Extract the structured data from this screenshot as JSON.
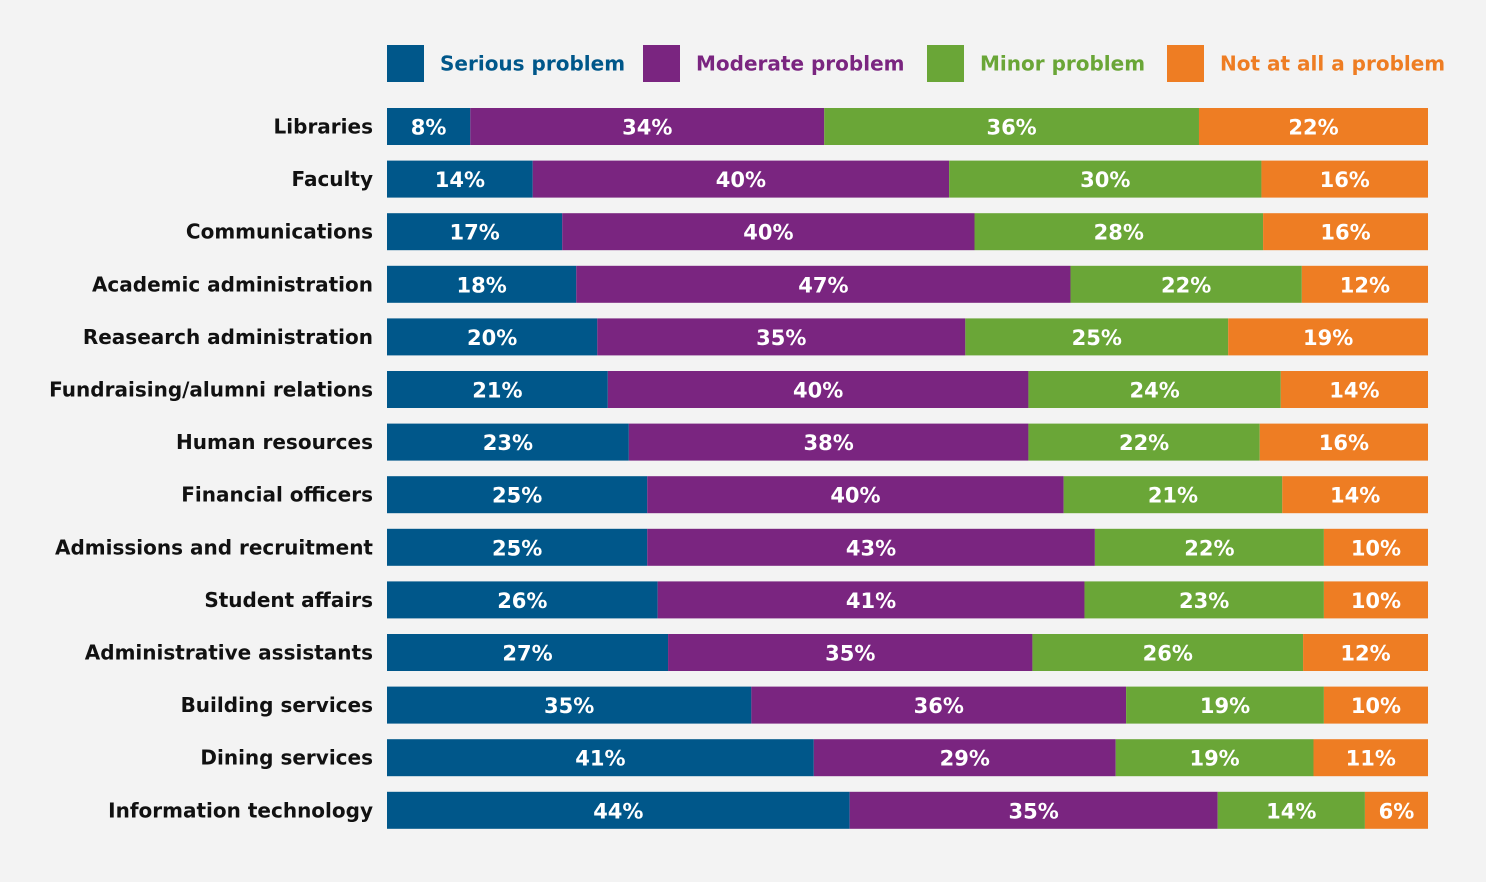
{
  "chart_data": {
    "type": "bar",
    "orientation": "horizontal",
    "stacked": true,
    "unit": "%",
    "categories": [
      "Libraries",
      "Faculty",
      "Communications",
      "Academic administration",
      "Reasearch administration",
      "Fundraising/alumni relations",
      "Human resources",
      "Financial officers",
      "Admissions and recruitment",
      "Student affairs",
      "Administrative assistants",
      "Building services",
      "Dining services",
      "Information technology"
    ],
    "series": [
      {
        "name": "Serious problem",
        "color": "#00578a",
        "values": [
          8,
          14,
          17,
          18,
          20,
          21,
          23,
          25,
          25,
          26,
          27,
          35,
          41,
          44
        ]
      },
      {
        "name": "Moderate problem",
        "color": "#7a2580",
        "values": [
          34,
          40,
          40,
          47,
          35,
          40,
          38,
          40,
          43,
          41,
          35,
          36,
          29,
          35
        ]
      },
      {
        "name": "Minor problem",
        "color": "#6aa637",
        "values": [
          36,
          30,
          28,
          22,
          25,
          24,
          22,
          21,
          22,
          23,
          26,
          19,
          19,
          14
        ]
      },
      {
        "name": "Not at all a problem",
        "color": "#ee7d23",
        "values": [
          22,
          16,
          16,
          12,
          19,
          14,
          16,
          14,
          10,
          10,
          12,
          10,
          11,
          6
        ]
      }
    ],
    "legend_position": "top-right",
    "grid": false,
    "title": "",
    "xlabel": "",
    "ylabel": ""
  }
}
